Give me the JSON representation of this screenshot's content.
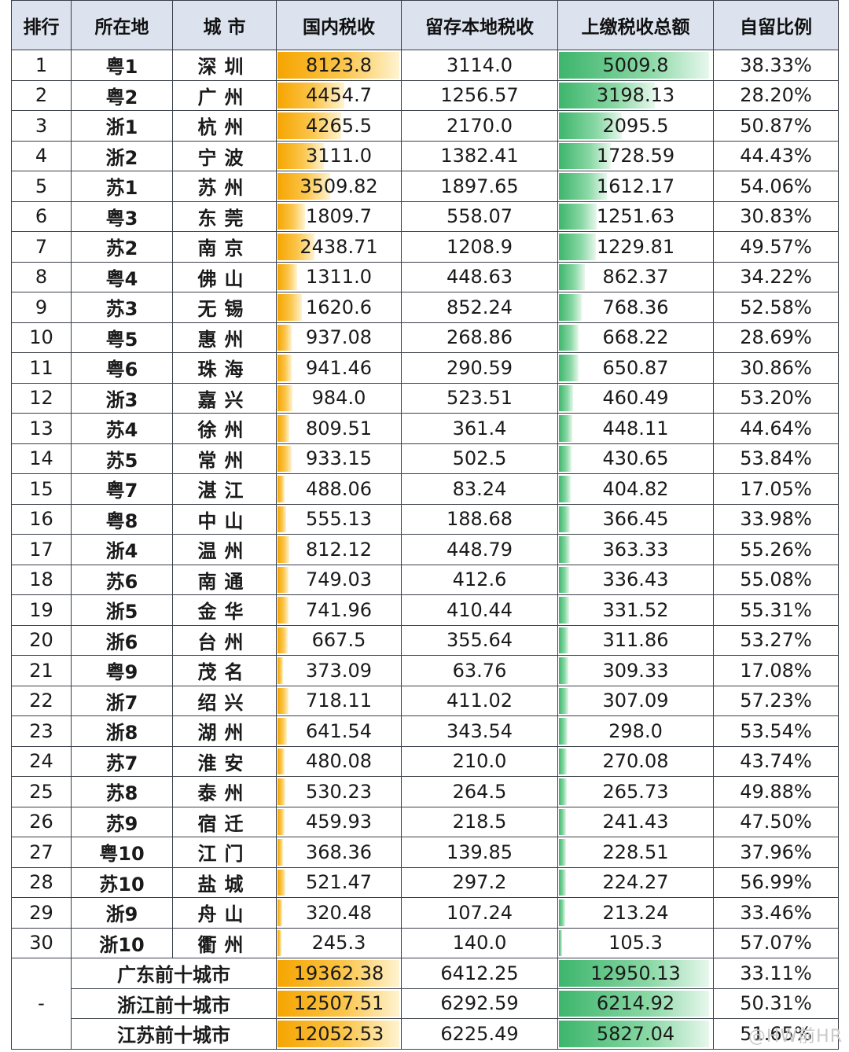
{
  "headers": [
    "排行",
    "所在地",
    "城 市",
    "国内税收",
    "留存本地税收",
    "上缴税收总额",
    "自留比例"
  ],
  "rows": [
    {
      "rank": "1",
      "region": "粤1",
      "city": "深圳",
      "domestic": "8123.8",
      "retained": "3114.0",
      "remitted": "5009.8",
      "ratio": "38.33%"
    },
    {
      "rank": "2",
      "region": "粤2",
      "city": "广州",
      "domestic": "4454.7",
      "retained": "1256.57",
      "remitted": "3198.13",
      "ratio": "28.20%"
    },
    {
      "rank": "3",
      "region": "浙1",
      "city": "杭州",
      "domestic": "4265.5",
      "retained": "2170.0",
      "remitted": "2095.5",
      "ratio": "50.87%"
    },
    {
      "rank": "4",
      "region": "浙2",
      "city": "宁波",
      "domestic": "3111.0",
      "retained": "1382.41",
      "remitted": "1728.59",
      "ratio": "44.43%"
    },
    {
      "rank": "5",
      "region": "苏1",
      "city": "苏州",
      "domestic": "3509.82",
      "retained": "1897.65",
      "remitted": "1612.17",
      "ratio": "54.06%"
    },
    {
      "rank": "6",
      "region": "粤3",
      "city": "东莞",
      "domestic": "1809.7",
      "retained": "558.07",
      "remitted": "1251.63",
      "ratio": "30.83%"
    },
    {
      "rank": "7",
      "region": "苏2",
      "city": "南京",
      "domestic": "2438.71",
      "retained": "1208.9",
      "remitted": "1229.81",
      "ratio": "49.57%"
    },
    {
      "rank": "8",
      "region": "粤4",
      "city": "佛山",
      "domestic": "1311.0",
      "retained": "448.63",
      "remitted": "862.37",
      "ratio": "34.22%"
    },
    {
      "rank": "9",
      "region": "苏3",
      "city": "无锡",
      "domestic": "1620.6",
      "retained": "852.24",
      "remitted": "768.36",
      "ratio": "52.58%"
    },
    {
      "rank": "10",
      "region": "粤5",
      "city": "惠州",
      "domestic": "937.08",
      "retained": "268.86",
      "remitted": "668.22",
      "ratio": "28.69%"
    },
    {
      "rank": "11",
      "region": "粤6",
      "city": "珠海",
      "domestic": "941.46",
      "retained": "290.59",
      "remitted": "650.87",
      "ratio": "30.86%"
    },
    {
      "rank": "12",
      "region": "浙3",
      "city": "嘉兴",
      "domestic": "984.0",
      "retained": "523.51",
      "remitted": "460.49",
      "ratio": "53.20%"
    },
    {
      "rank": "13",
      "region": "苏4",
      "city": "徐州",
      "domestic": "809.51",
      "retained": "361.4",
      "remitted": "448.11",
      "ratio": "44.64%"
    },
    {
      "rank": "14",
      "region": "苏5",
      "city": "常州",
      "domestic": "933.15",
      "retained": "502.5",
      "remitted": "430.65",
      "ratio": "53.84%"
    },
    {
      "rank": "15",
      "region": "粤7",
      "city": "湛江",
      "domestic": "488.06",
      "retained": "83.24",
      "remitted": "404.82",
      "ratio": "17.05%"
    },
    {
      "rank": "16",
      "region": "粤8",
      "city": "中山",
      "domestic": "555.13",
      "retained": "188.68",
      "remitted": "366.45",
      "ratio": "33.98%"
    },
    {
      "rank": "17",
      "region": "浙4",
      "city": "温州",
      "domestic": "812.12",
      "retained": "448.79",
      "remitted": "363.33",
      "ratio": "55.26%"
    },
    {
      "rank": "18",
      "region": "苏6",
      "city": "南通",
      "domestic": "749.03",
      "retained": "412.6",
      "remitted": "336.43",
      "ratio": "55.08%"
    },
    {
      "rank": "19",
      "region": "浙5",
      "city": "金华",
      "domestic": "741.96",
      "retained": "410.44",
      "remitted": "331.52",
      "ratio": "55.31%"
    },
    {
      "rank": "20",
      "region": "浙6",
      "city": "台州",
      "domestic": "667.5",
      "retained": "355.64",
      "remitted": "311.86",
      "ratio": "53.27%"
    },
    {
      "rank": "21",
      "region": "粤9",
      "city": "茂名",
      "domestic": "373.09",
      "retained": "63.76",
      "remitted": "309.33",
      "ratio": "17.08%"
    },
    {
      "rank": "22",
      "region": "浙7",
      "city": "绍兴",
      "domestic": "718.11",
      "retained": "411.02",
      "remitted": "307.09",
      "ratio": "57.23%"
    },
    {
      "rank": "23",
      "region": "浙8",
      "city": "湖州",
      "domestic": "641.54",
      "retained": "343.54",
      "remitted": "298.0",
      "ratio": "53.54%"
    },
    {
      "rank": "24",
      "region": "苏7",
      "city": "淮安",
      "domestic": "480.08",
      "retained": "210.0",
      "remitted": "270.08",
      "ratio": "43.74%"
    },
    {
      "rank": "25",
      "region": "苏8",
      "city": "泰州",
      "domestic": "530.23",
      "retained": "264.5",
      "remitted": "265.73",
      "ratio": "49.88%"
    },
    {
      "rank": "26",
      "region": "苏9",
      "city": "宿迁",
      "domestic": "459.93",
      "retained": "218.5",
      "remitted": "241.43",
      "ratio": "47.50%"
    },
    {
      "rank": "27",
      "region": "粤10",
      "city": "江门",
      "domestic": "368.36",
      "retained": "139.85",
      "remitted": "228.51",
      "ratio": "37.96%"
    },
    {
      "rank": "28",
      "region": "苏10",
      "city": "盐城",
      "domestic": "521.47",
      "retained": "297.2",
      "remitted": "224.27",
      "ratio": "56.99%"
    },
    {
      "rank": "29",
      "region": "浙9",
      "city": "舟山",
      "domestic": "320.48",
      "retained": "107.24",
      "remitted": "213.24",
      "ratio": "33.46%"
    },
    {
      "rank": "30",
      "region": "浙10",
      "city": "衢州",
      "domestic": "245.3",
      "retained": "140.0",
      "remitted": "105.3",
      "ratio": "57.07%"
    }
  ],
  "summary_rank": "-",
  "summary": [
    {
      "label": "广东前十城市",
      "domestic": "19362.38",
      "retained": "6412.25",
      "remitted": "12950.13",
      "ratio": "33.11%"
    },
    {
      "label": "浙江前十城市",
      "domestic": "12507.51",
      "retained": "6292.59",
      "remitted": "6214.92",
      "ratio": "50.31%"
    },
    {
      "label": "江苏前十城市",
      "domestic": "12052.53",
      "retained": "6225.49",
      "remitted": "5827.04",
      "ratio": "51.65%"
    }
  ],
  "watermark": "@HW前HR",
  "bar_colors": {
    "domestic": "#f6a500",
    "remitted": "#3db56c"
  }
}
